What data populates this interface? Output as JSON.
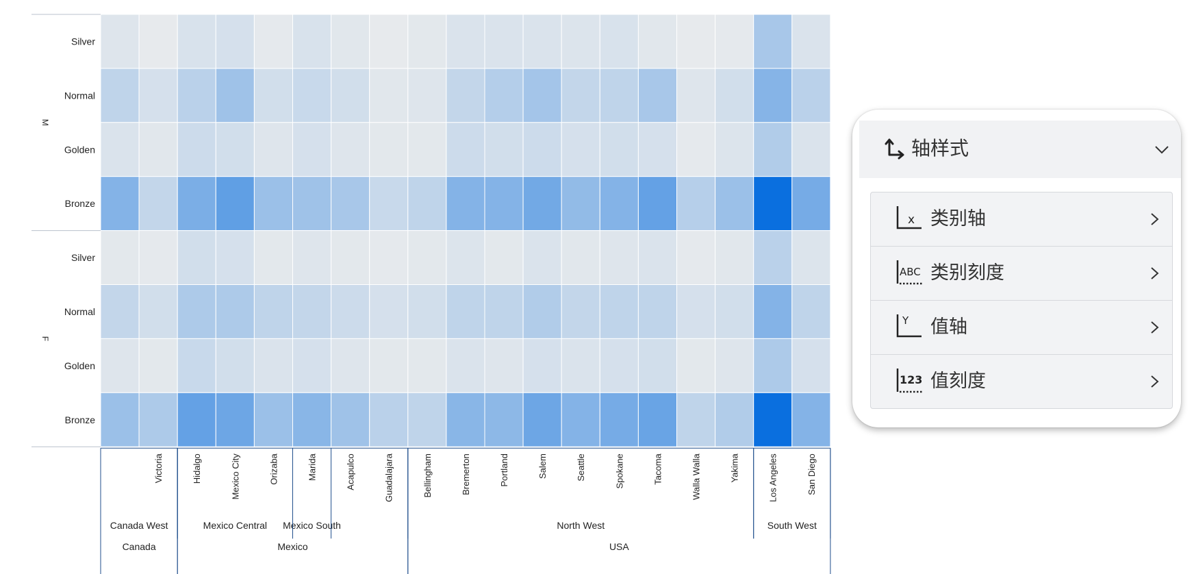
{
  "chart_data": {
    "type": "heatmap",
    "genders": [
      "M",
      "F"
    ],
    "cards": [
      "Silver",
      "Normal",
      "Golden",
      "Bronze"
    ],
    "cities": [
      "",
      "Victoria",
      "Hidalgo",
      "Mexico City",
      "Orizaba",
      "Marida",
      "Acapulco",
      "Guadalajara",
      "Bellingham",
      "Bremerton",
      "Portland",
      "Salem",
      "Seattle",
      "Spokane",
      "Tacoma",
      "Walla Walla",
      "Yakima",
      "Los Angeles",
      "San Diego"
    ],
    "regions": [
      {
        "label": "Canada West",
        "start": 0,
        "end": 2
      },
      {
        "label": "Mexico Central",
        "start": 2,
        "end": 5
      },
      {
        "label": "Mexico South",
        "start": 5,
        "end": 6
      },
      {
        "label": "North West",
        "start": 8,
        "end": 17
      },
      {
        "label": "South West",
        "start": 17,
        "end": 19
      }
    ],
    "countries": [
      {
        "label": "Canada",
        "start": 0,
        "end": 2
      },
      {
        "label": "Mexico",
        "start": 2,
        "end": 8
      },
      {
        "label": "USA",
        "start": 8,
        "end": 19
      }
    ],
    "intensity_scale": [
      0,
      1
    ],
    "values": [
      [
        0.06,
        0.02,
        0.09,
        0.1,
        0.03,
        0.09,
        0.05,
        0.02,
        0.04,
        0.08,
        0.08,
        0.08,
        0.07,
        0.09,
        0.05,
        0.02,
        0.03,
        0.3,
        0.08
      ],
      [
        0.2,
        0.1,
        0.22,
        0.34,
        0.12,
        0.16,
        0.12,
        0.05,
        0.06,
        0.18,
        0.25,
        0.32,
        0.18,
        0.2,
        0.3,
        0.06,
        0.12,
        0.45,
        0.22
      ],
      [
        0.08,
        0.05,
        0.14,
        0.12,
        0.06,
        0.1,
        0.06,
        0.04,
        0.04,
        0.14,
        0.12,
        0.14,
        0.1,
        0.12,
        0.1,
        0.03,
        0.07,
        0.26,
        0.08
      ],
      [
        0.46,
        0.18,
        0.5,
        0.62,
        0.36,
        0.34,
        0.3,
        0.16,
        0.2,
        0.46,
        0.46,
        0.54,
        0.4,
        0.46,
        0.6,
        0.24,
        0.36,
        1.0,
        0.52
      ],
      [
        0.04,
        0.03,
        0.12,
        0.1,
        0.04,
        0.06,
        0.04,
        0.03,
        0.04,
        0.07,
        0.04,
        0.08,
        0.05,
        0.06,
        0.08,
        0.03,
        0.05,
        0.22,
        0.07
      ],
      [
        0.18,
        0.12,
        0.28,
        0.28,
        0.2,
        0.18,
        0.14,
        0.1,
        0.12,
        0.2,
        0.2,
        0.26,
        0.18,
        0.2,
        0.2,
        0.1,
        0.12,
        0.46,
        0.2
      ],
      [
        0.06,
        0.04,
        0.16,
        0.12,
        0.08,
        0.1,
        0.06,
        0.04,
        0.04,
        0.08,
        0.06,
        0.1,
        0.08,
        0.1,
        0.12,
        0.04,
        0.06,
        0.28,
        0.1
      ],
      [
        0.36,
        0.28,
        0.6,
        0.56,
        0.36,
        0.44,
        0.34,
        0.22,
        0.2,
        0.44,
        0.42,
        0.56,
        0.46,
        0.52,
        0.58,
        0.2,
        0.26,
        1.0,
        0.46
      ]
    ],
    "colors": {
      "low": "#eceded",
      "high": "#0a6fdf",
      "divider": "#1f4e8c",
      "axis_text": "#222222",
      "grid": "#ffffff"
    }
  },
  "panel": {
    "title": "轴样式",
    "items": [
      {
        "label": "类别轴",
        "icon": "x-axis-icon"
      },
      {
        "label": "类别刻度",
        "icon": "abc-scale-icon"
      },
      {
        "label": "值轴",
        "icon": "y-axis-icon"
      },
      {
        "label": "值刻度",
        "icon": "number-scale-icon"
      }
    ]
  }
}
